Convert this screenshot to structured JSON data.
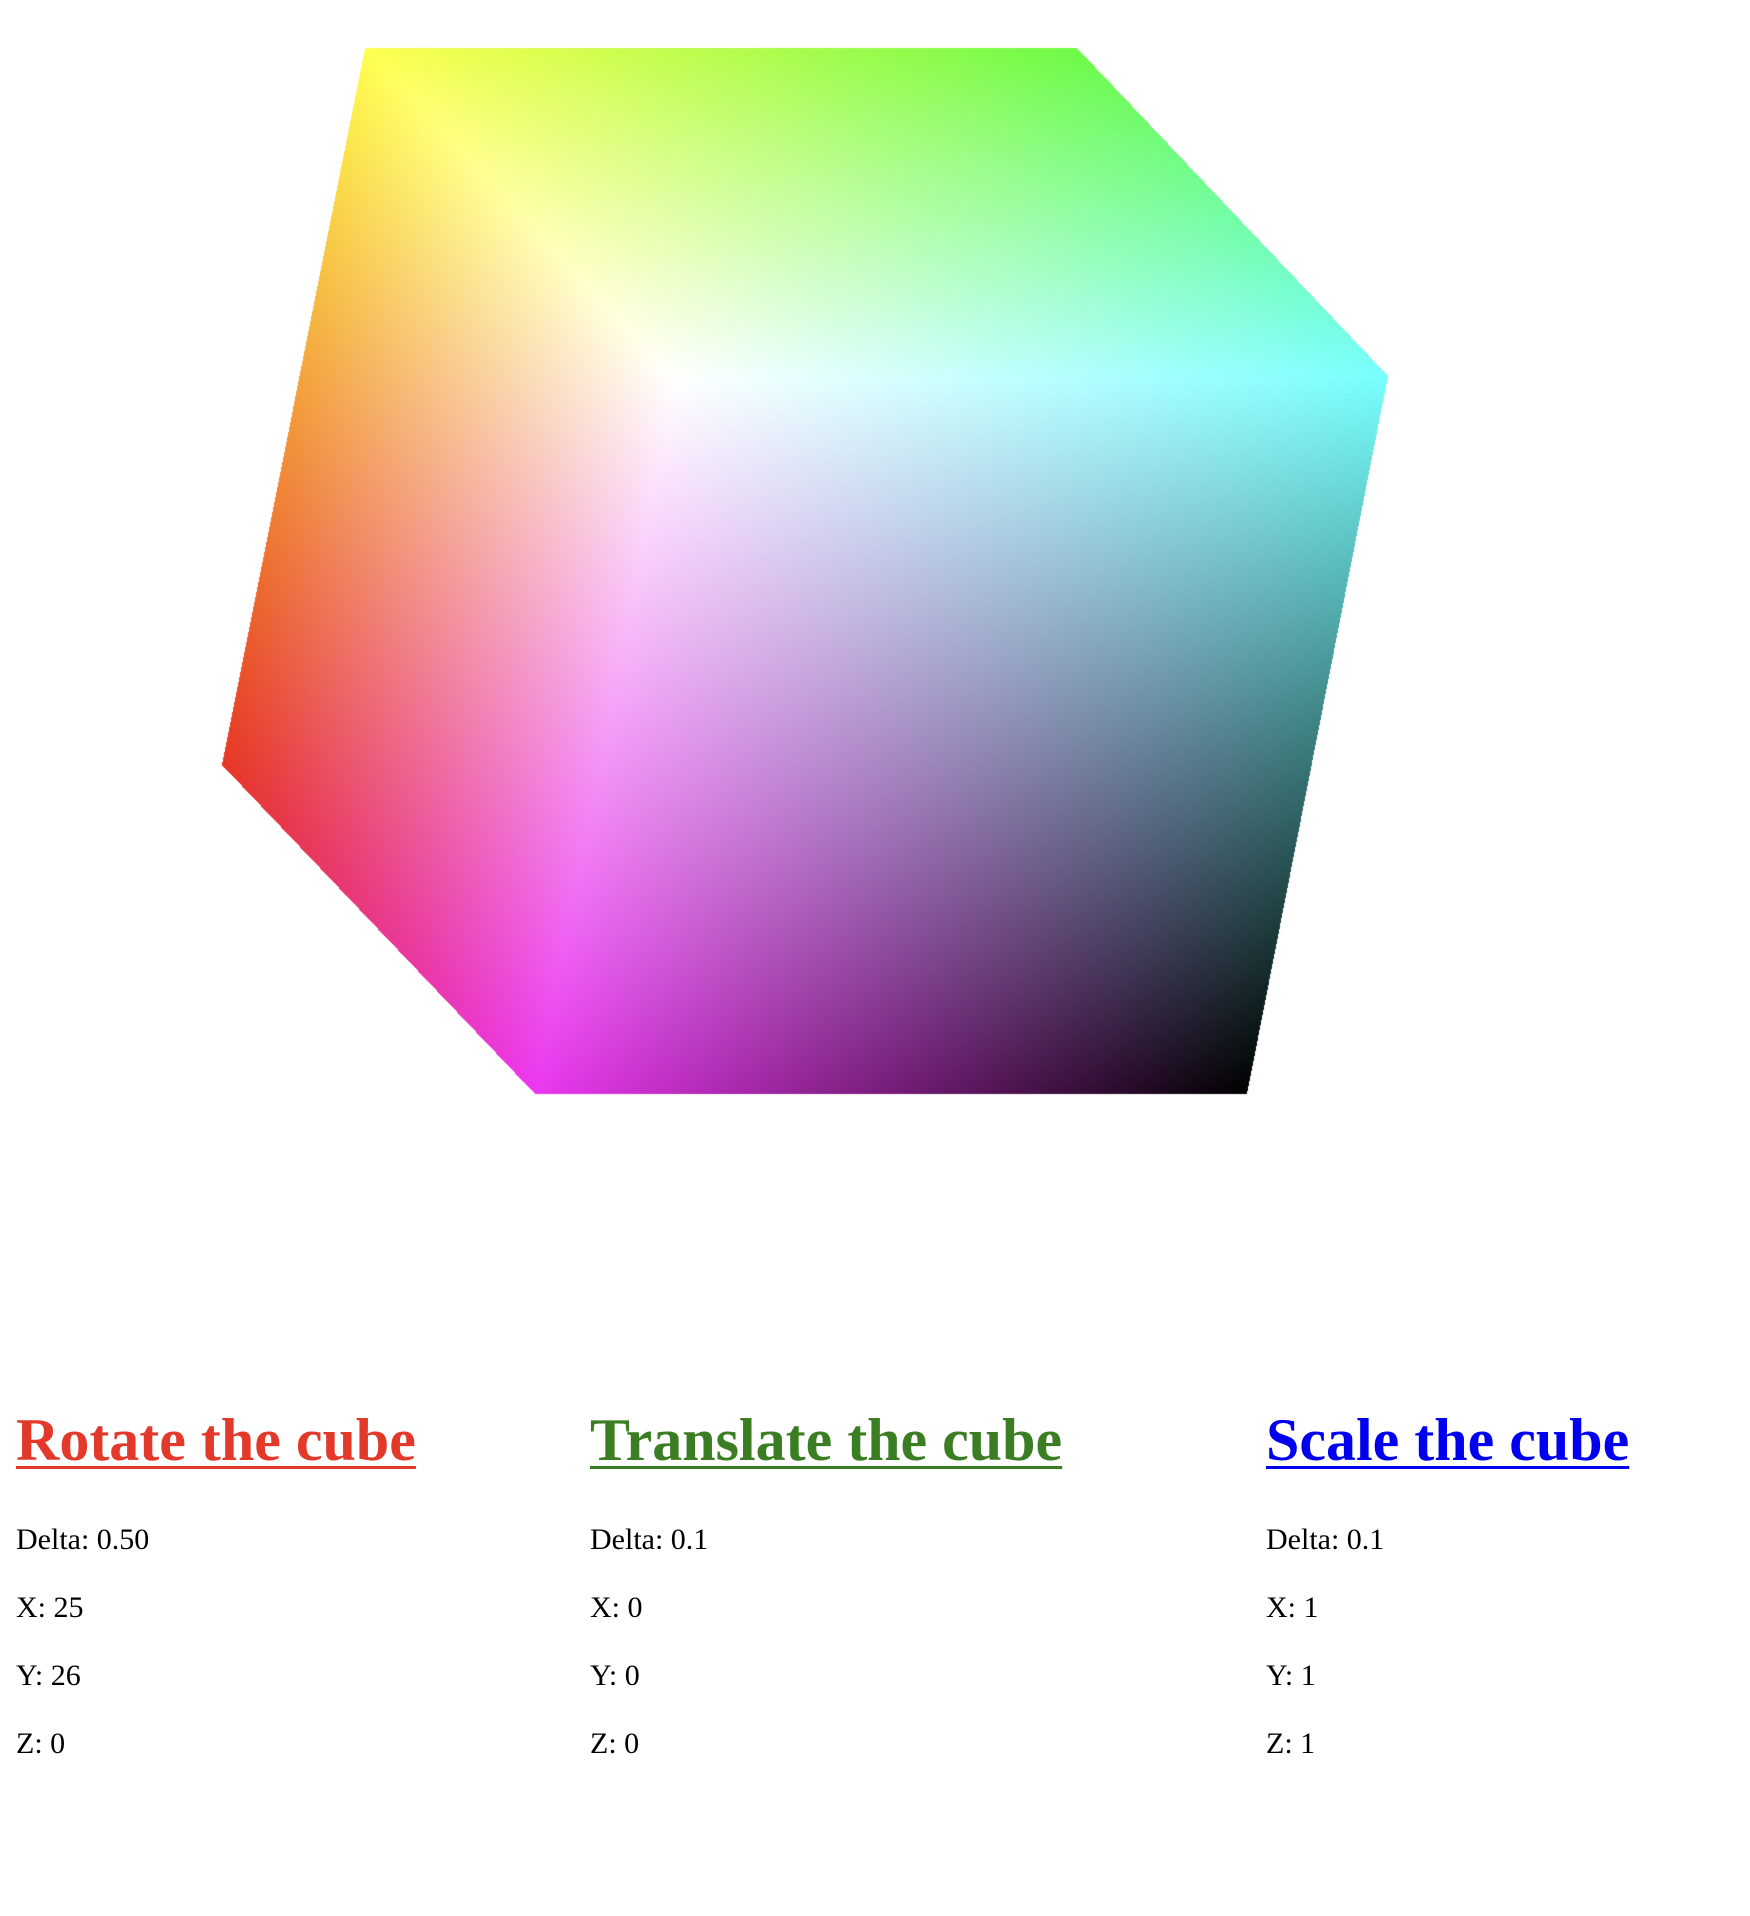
{
  "cube": {
    "rotation": {
      "x": 25,
      "y": 26,
      "z": 0
    },
    "translation": {
      "x": 0,
      "y": 0,
      "z": 0
    },
    "scale": {
      "x": 1,
      "y": 1,
      "z": 1
    }
  },
  "panels": {
    "rotate": {
      "title": "Rotate the cube",
      "color": "#e2392a",
      "delta": "Delta: 0.50",
      "x": "X: 25",
      "y": "Y: 26",
      "z": "Z: 0"
    },
    "translate": {
      "title": "Translate the cube",
      "color": "#3a7d22",
      "delta": "Delta: 0.1",
      "x": "X: 0",
      "y": "Y: 0",
      "z": "Z: 0"
    },
    "scale": {
      "title": "Scale the cube",
      "color": "#0000ee",
      "delta": "Delta: 0.1",
      "x": "X: 1",
      "y": "Y: 1",
      "z": "Z: 1"
    }
  }
}
